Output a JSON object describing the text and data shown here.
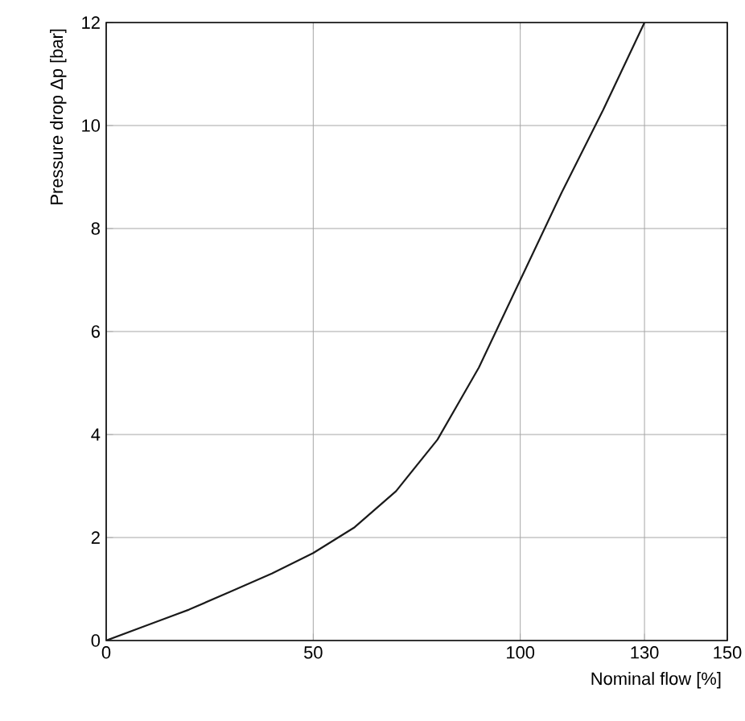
{
  "chart_data": {
    "type": "line",
    "xlabel": "Nominal flow [%]",
    "ylabel": "Pressure drop Δp [bar]",
    "x": [
      0,
      10,
      20,
      30,
      40,
      50,
      60,
      70,
      80,
      90,
      100,
      110,
      120,
      130
    ],
    "series": [
      {
        "color": "#1a1a1a",
        "values": [
          0,
          0.3,
          0.6,
          0.95,
          1.3,
          1.7,
          2.2,
          2.9,
          3.9,
          5.3,
          7.0,
          8.7,
          10.3,
          12
        ]
      }
    ],
    "xlim": [
      0,
      150
    ],
    "ylim": [
      0,
      12
    ],
    "xticks": [
      0,
      50,
      100,
      130,
      150
    ],
    "yticks": [
      0,
      2,
      4,
      6,
      8,
      10,
      12
    ],
    "grid": true,
    "marker": "none",
    "line_style": "solid"
  }
}
